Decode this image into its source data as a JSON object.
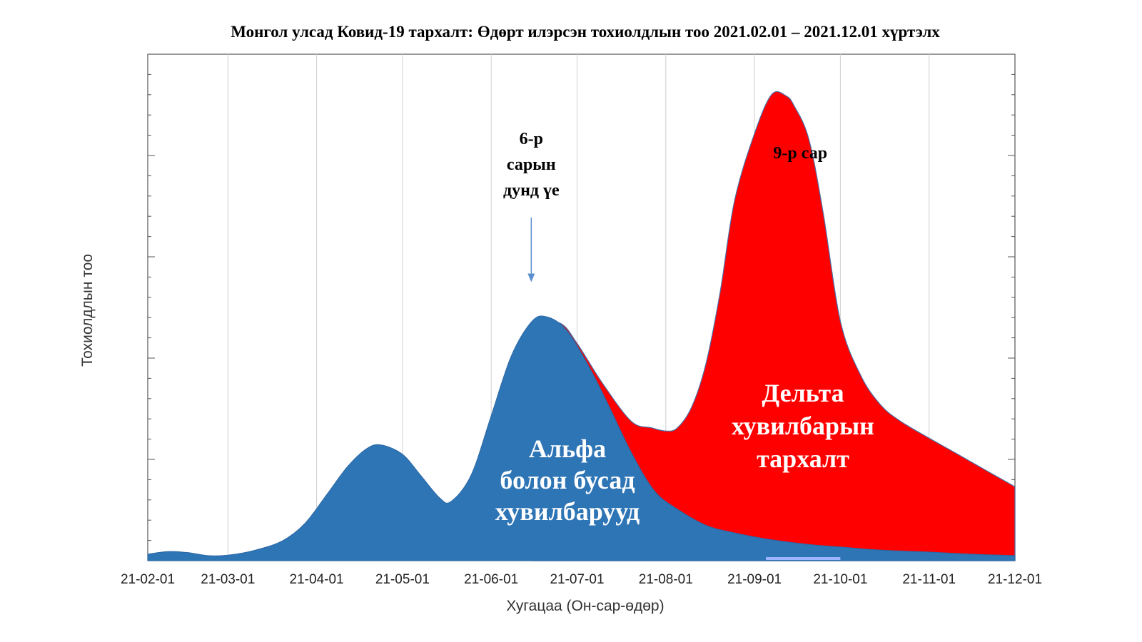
{
  "chart_data": {
    "type": "area",
    "title": "Монгол улсад Ковид-19 тархалт: Өдөрт илэрсэн тохиолдлын тоо 2021.02.01 – 2021.12.01 хүртэлх",
    "xlabel": "Хугацаа (Он-сар-өдөр)",
    "ylabel": "Тохиолдлын тоо",
    "x_ticks": [
      "21-02-01",
      "21-03-01",
      "21-04-01",
      "21-05-01",
      "21-06-01",
      "21-07-01",
      "21-08-01",
      "21-09-01",
      "21-10-01",
      "21-11-01",
      "21-12-01"
    ],
    "xlim": [
      "2021-02-01",
      "2021-12-01"
    ],
    "ylim": [
      0,
      100
    ],
    "y_ticks_labeled": false,
    "grid": "vertical",
    "series": [
      {
        "name": "Альфа болон бусад хувилбарууд",
        "color": "#2e75b6",
        "x": [
          "2021-02-01",
          "2021-02-08",
          "2021-02-15",
          "2021-02-22",
          "2021-03-01",
          "2021-03-10",
          "2021-03-20",
          "2021-03-28",
          "2021-04-05",
          "2021-04-12",
          "2021-04-19",
          "2021-04-24",
          "2021-05-01",
          "2021-05-07",
          "2021-05-14",
          "2021-05-18",
          "2021-05-25",
          "2021-06-01",
          "2021-06-08",
          "2021-06-15",
          "2021-06-20",
          "2021-06-27",
          "2021-07-05",
          "2021-07-12",
          "2021-07-20",
          "2021-07-28",
          "2021-08-05",
          "2021-08-15",
          "2021-08-25",
          "2021-09-05",
          "2021-09-20",
          "2021-10-01",
          "2021-10-15",
          "2021-11-01",
          "2021-11-15",
          "2021-12-01"
        ],
        "values": [
          1.3,
          1.8,
          1.6,
          1.0,
          1.1,
          2.0,
          3.9,
          7.4,
          13.4,
          18.7,
          22.3,
          22.8,
          21.0,
          17.1,
          12.4,
          11.7,
          16.9,
          28.6,
          40.4,
          47.1,
          48.2,
          45.7,
          38.5,
          30.7,
          21.3,
          13.8,
          10.2,
          7.0,
          5.5,
          4.3,
          3.2,
          2.7,
          2.1,
          1.7,
          1.3,
          1.0
        ]
      },
      {
        "name": "Дельта хувилбарын тархалт",
        "color": "#ff0000",
        "x": [
          "2021-06-15",
          "2021-06-25",
          "2021-07-01",
          "2021-07-10",
          "2021-07-20",
          "2021-07-27",
          "2021-08-01",
          "2021-08-05",
          "2021-08-10",
          "2021-08-15",
          "2021-08-20",
          "2021-08-25",
          "2021-09-01",
          "2021-09-07",
          "2021-09-12",
          "2021-09-15",
          "2021-09-20",
          "2021-09-25",
          "2021-10-01",
          "2021-10-08",
          "2021-10-15",
          "2021-10-22",
          "2021-11-01",
          "2021-11-10",
          "2021-11-20",
          "2021-12-01"
        ],
        "values": [
          0,
          0.5,
          0.8,
          2.0,
          6.2,
          11.5,
          13.6,
          16.0,
          21.7,
          31.8,
          46.8,
          65.5,
          79.6,
          87.9,
          88.0,
          86.1,
          80.0,
          65.7,
          44.6,
          34.3,
          28.7,
          25.6,
          22.5,
          19.9,
          16.9,
          13.6
        ]
      }
    ],
    "annotations": [
      {
        "lines": [
          "6-р",
          "сарын",
          "дунд үе"
        ],
        "x": "2021-06-15",
        "arrow_to_y": 55
      },
      {
        "lines": [
          "9-р сар"
        ],
        "x": "2021-09-15"
      }
    ],
    "area_labels": [
      {
        "series": 0,
        "lines": [
          "Альфа",
          "болон бусад",
          "хувилбарууд"
        ]
      },
      {
        "series": 1,
        "lines": [
          "Дельта",
          "хувилбарын",
          "тархалт"
        ]
      }
    ]
  }
}
